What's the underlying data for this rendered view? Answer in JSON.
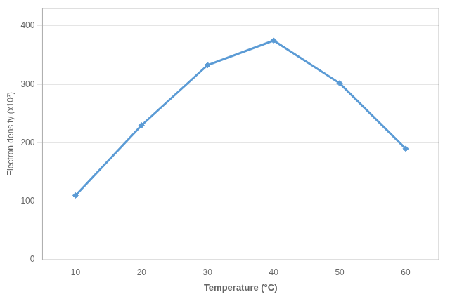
{
  "chart_data": {
    "type": "line",
    "xlabel": "Temperature (°C)",
    "ylabel": "Electron density (x10³)",
    "x": [
      10,
      20,
      30,
      40,
      50,
      60
    ],
    "values": [
      110,
      230,
      333,
      375,
      302,
      190
    ],
    "color": "#5b9bd5",
    "marker": "diamond",
    "xlim": [
      5,
      65
    ],
    "xticks": [
      10,
      20,
      30,
      40,
      50,
      60
    ],
    "ylim": [
      0,
      430
    ],
    "yticks": [
      0,
      100,
      200,
      300,
      400
    ],
    "grid": "y"
  }
}
